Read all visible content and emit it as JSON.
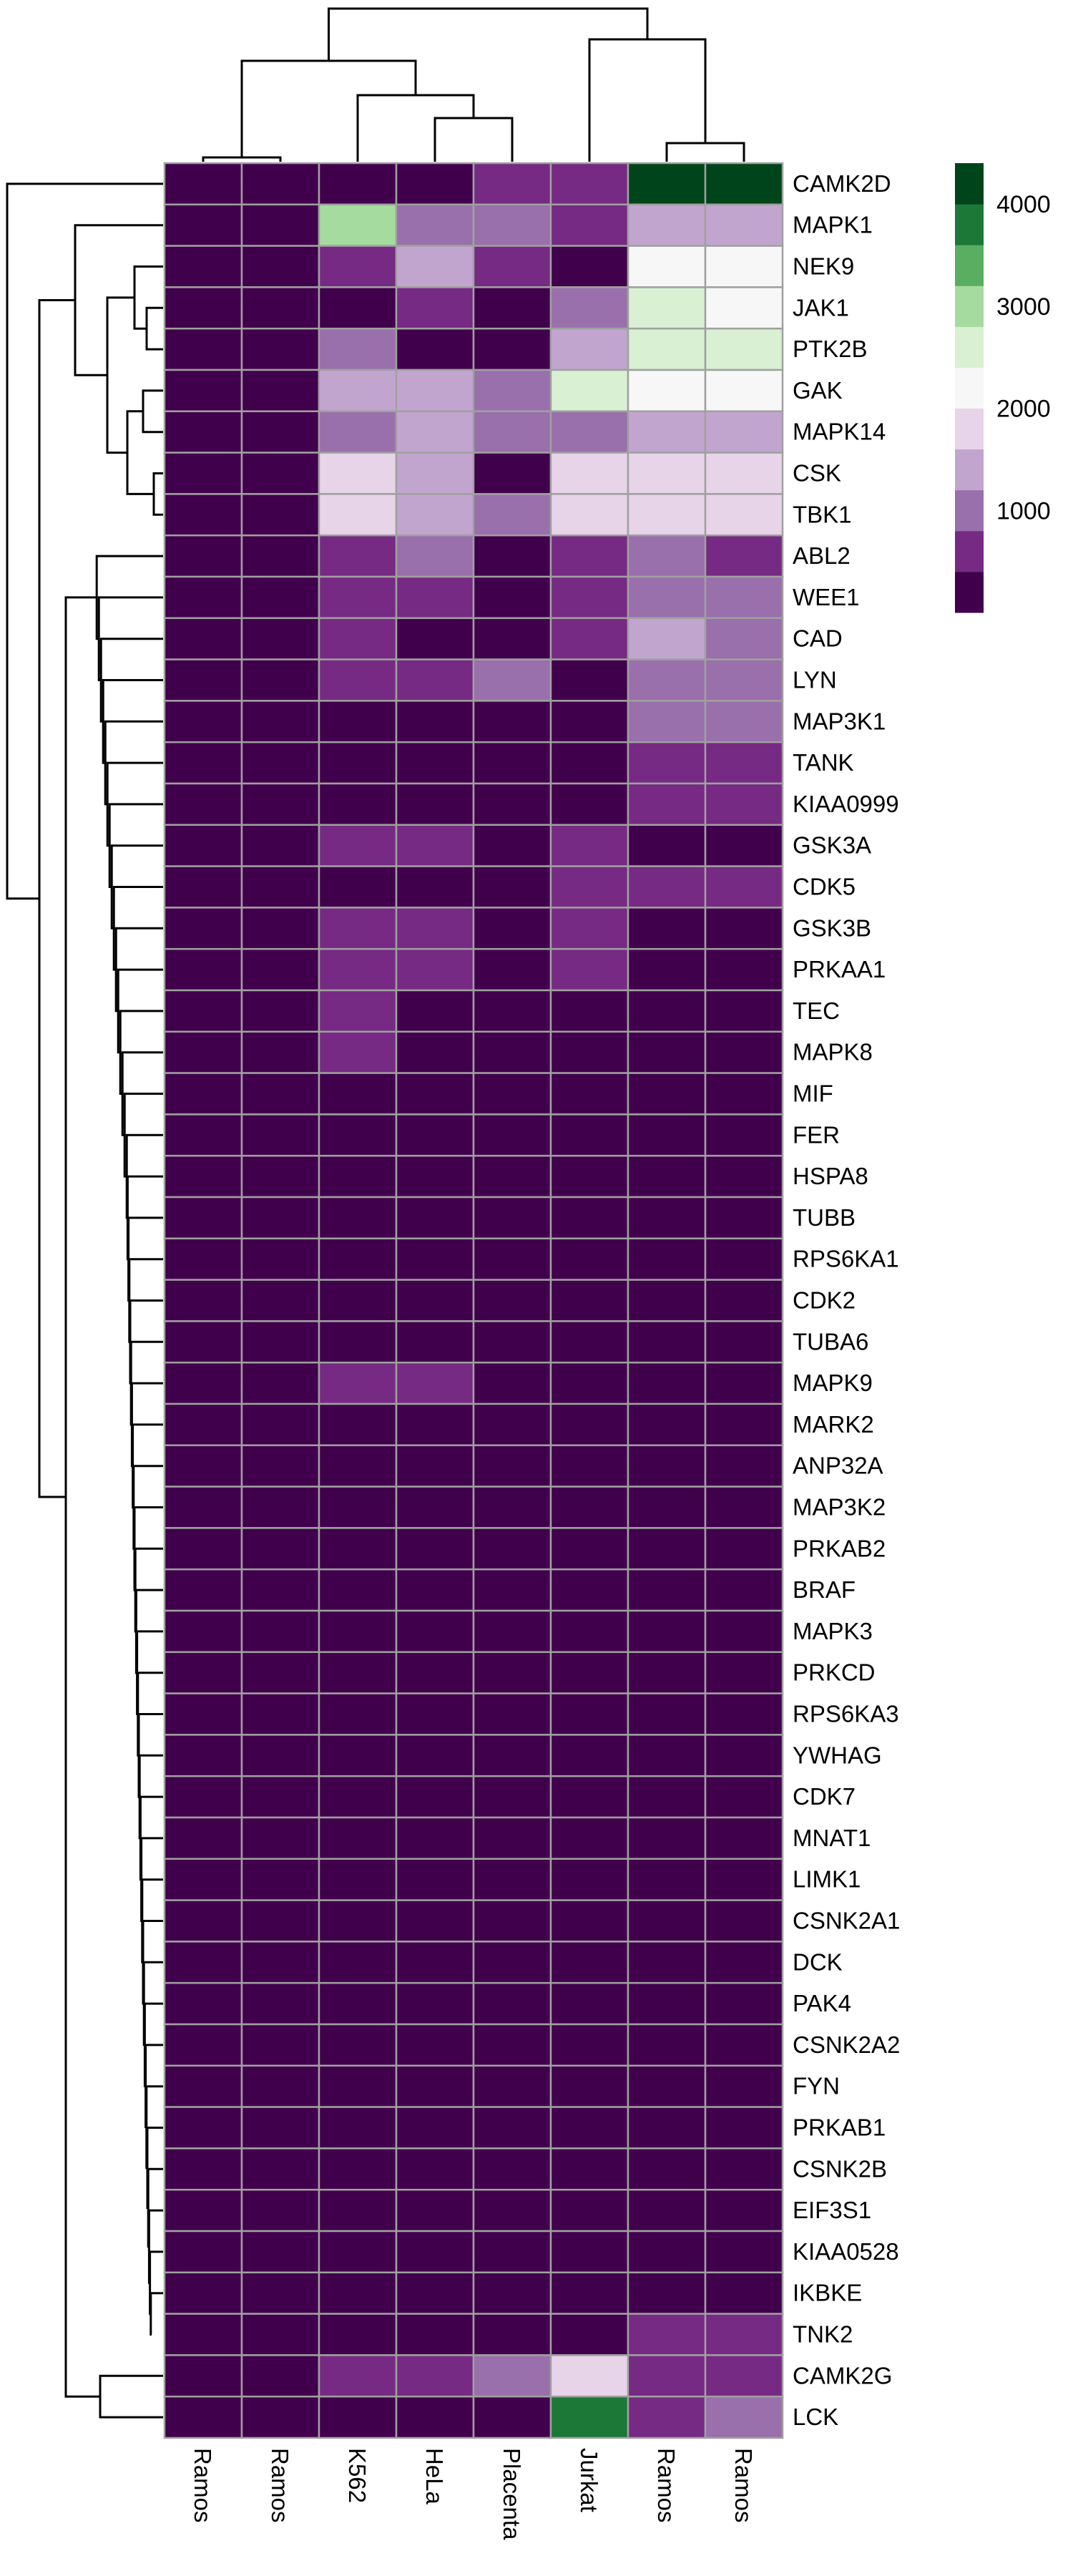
{
  "chart_data": {
    "type": "heatmap",
    "title": "",
    "xlabel": "",
    "ylabel": "",
    "columns": [
      "Ramos",
      "Ramos",
      "K562",
      "HeLa",
      "Placenta",
      "Jurkat",
      "Ramos",
      "Ramos"
    ],
    "rows": [
      "CAMK2D",
      "MAPK1",
      "NEK9",
      "JAK1",
      "PTK2B",
      "GAK",
      "MAPK14",
      "CSK",
      "TBK1",
      "ABL2",
      "WEE1",
      "CAD",
      "LYN",
      "MAP3K1",
      "TANK",
      "KIAA0999",
      "GSK3A",
      "CDK5",
      "GSK3B",
      "PRKAA1",
      "TEC",
      "MAPK8",
      "MIF",
      "FER",
      "HSPA8",
      "TUBB",
      "RPS6KA1",
      "CDK2",
      "TUBA6",
      "MAPK9",
      "MARK2",
      "ANP32A",
      "MAP3K2",
      "PRKAB2",
      "BRAF",
      "MAPK3",
      "PRKCD",
      "RPS6KA3",
      "YWHAG",
      "CDK7",
      "MNAT1",
      "LIMK1",
      "CSNK2A1",
      "DCK",
      "PAK4",
      "CSNK2A2",
      "FYN",
      "PRKAB1",
      "CSNK2B",
      "EIF3S1",
      "KIAA0528",
      "IKBKE",
      "TNK2",
      "CAMK2G",
      "LCK"
    ],
    "values": [
      [
        0,
        0,
        0,
        0,
        400,
        400,
        4400,
        4400
      ],
      [
        0,
        0,
        2900,
        900,
        900,
        500,
        1400,
        1400
      ],
      [
        0,
        0,
        500,
        1400,
        500,
        0,
        2100,
        2100
      ],
      [
        0,
        0,
        0,
        500,
        0,
        900,
        2600,
        2100
      ],
      [
        0,
        0,
        900,
        0,
        0,
        1400,
        2600,
        2600
      ],
      [
        0,
        0,
        1400,
        1400,
        900,
        2600,
        2100,
        2100
      ],
      [
        0,
        0,
        900,
        1400,
        900,
        900,
        1400,
        1400
      ],
      [
        0,
        0,
        1800,
        1400,
        0,
        1800,
        1800,
        1800
      ],
      [
        0,
        0,
        1800,
        1400,
        900,
        1800,
        1800,
        1800
      ],
      [
        0,
        0,
        400,
        900,
        0,
        400,
        900,
        400
      ],
      [
        0,
        0,
        400,
        400,
        0,
        400,
        900,
        900
      ],
      [
        0,
        0,
        400,
        0,
        0,
        400,
        1400,
        900
      ],
      [
        0,
        0,
        400,
        400,
        900,
        0,
        900,
        900
      ],
      [
        0,
        0,
        0,
        0,
        0,
        0,
        900,
        900
      ],
      [
        0,
        0,
        0,
        0,
        0,
        0,
        400,
        400
      ],
      [
        0,
        0,
        0,
        0,
        0,
        0,
        400,
        400
      ],
      [
        0,
        0,
        400,
        400,
        0,
        400,
        0,
        0
      ],
      [
        0,
        0,
        0,
        0,
        0,
        400,
        400,
        400
      ],
      [
        0,
        0,
        400,
        400,
        0,
        400,
        0,
        0
      ],
      [
        0,
        0,
        400,
        400,
        0,
        400,
        0,
        0
      ],
      [
        0,
        0,
        400,
        0,
        0,
        0,
        0,
        0
      ],
      [
        0,
        0,
        400,
        0,
        0,
        0,
        0,
        0
      ],
      [
        0,
        0,
        0,
        0,
        0,
        0,
        0,
        0
      ],
      [
        0,
        0,
        0,
        0,
        0,
        0,
        0,
        0
      ],
      [
        0,
        0,
        0,
        0,
        0,
        0,
        0,
        0
      ],
      [
        0,
        0,
        0,
        0,
        0,
        0,
        0,
        0
      ],
      [
        0,
        0,
        0,
        0,
        0,
        0,
        0,
        0
      ],
      [
        0,
        0,
        0,
        0,
        0,
        0,
        0,
        0
      ],
      [
        0,
        0,
        0,
        0,
        0,
        0,
        0,
        0
      ],
      [
        0,
        0,
        400,
        400,
        0,
        0,
        0,
        0
      ],
      [
        0,
        0,
        0,
        0,
        0,
        0,
        0,
        0
      ],
      [
        0,
        0,
        0,
        0,
        0,
        0,
        0,
        0
      ],
      [
        0,
        0,
        0,
        0,
        0,
        0,
        0,
        0
      ],
      [
        0,
        0,
        0,
        0,
        0,
        0,
        0,
        0
      ],
      [
        0,
        0,
        0,
        0,
        0,
        0,
        0,
        0
      ],
      [
        0,
        0,
        0,
        0,
        0,
        0,
        0,
        0
      ],
      [
        0,
        0,
        0,
        0,
        0,
        0,
        0,
        0
      ],
      [
        0,
        0,
        0,
        0,
        0,
        0,
        0,
        0
      ],
      [
        0,
        0,
        0,
        0,
        0,
        0,
        0,
        0
      ],
      [
        0,
        0,
        0,
        0,
        0,
        0,
        0,
        0
      ],
      [
        0,
        0,
        0,
        0,
        0,
        0,
        0,
        0
      ],
      [
        0,
        0,
        0,
        0,
        0,
        0,
        0,
        0
      ],
      [
        0,
        0,
        0,
        0,
        0,
        0,
        0,
        0
      ],
      [
        0,
        0,
        0,
        0,
        0,
        0,
        0,
        0
      ],
      [
        0,
        0,
        0,
        0,
        0,
        0,
        0,
        0
      ],
      [
        0,
        0,
        0,
        0,
        0,
        0,
        0,
        0
      ],
      [
        0,
        0,
        0,
        0,
        0,
        0,
        0,
        0
      ],
      [
        0,
        0,
        0,
        0,
        0,
        0,
        0,
        0
      ],
      [
        0,
        0,
        0,
        0,
        0,
        0,
        0,
        0
      ],
      [
        0,
        0,
        0,
        0,
        0,
        0,
        0,
        0
      ],
      [
        0,
        0,
        0,
        0,
        0,
        0,
        0,
        0
      ],
      [
        0,
        0,
        0,
        0,
        0,
        0,
        0,
        0
      ],
      [
        0,
        0,
        0,
        0,
        0,
        0,
        400,
        400
      ],
      [
        0,
        0,
        400,
        400,
        900,
        1800,
        400,
        400
      ],
      [
        0,
        0,
        0,
        0,
        0,
        3800,
        400,
        900
      ]
    ],
    "color_scale": {
      "range": [
        0,
        4400
      ],
      "ticks": [
        1000,
        2000,
        3000,
        4000
      ],
      "colors": [
        "#40004b",
        "#762a83",
        "#9970ab",
        "#c2a5cf",
        "#e7d4e8",
        "#f7f7f7",
        "#d9f0d3",
        "#a6dba0",
        "#5aae61",
        "#1b7837",
        "#00441b"
      ]
    },
    "legend_placement": "right",
    "row_dendrogram": "left",
    "column_dendrogram": "top",
    "grid": true
  }
}
